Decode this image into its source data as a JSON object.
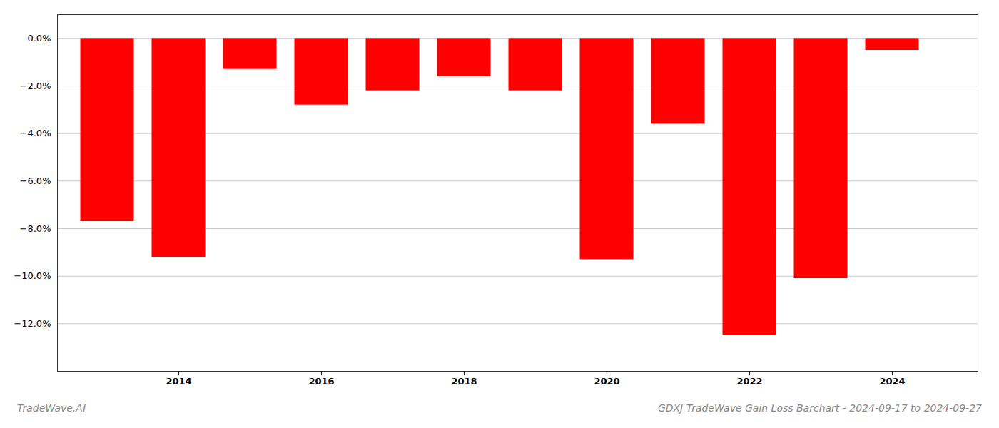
{
  "chart_data": {
    "type": "bar",
    "title": "GDXJ TradeWave Gain Loss Barchart - 2024-09-17 to 2024-09-27",
    "annotations": [
      "TradeWave.AI"
    ],
    "x": [
      2013,
      2014,
      2015,
      2016,
      2017,
      2018,
      2019,
      2020,
      2021,
      2022,
      2023,
      2024
    ],
    "values": [
      -0.077,
      -0.092,
      -0.013,
      -0.028,
      -0.022,
      -0.016,
      -0.022,
      -0.093,
      -0.036,
      -0.125,
      -0.101,
      -0.005
    ],
    "color": "#ff0000",
    "xlim": [
      2012.3,
      2025.2
    ],
    "xticks": [
      2014,
      2016,
      2018,
      2020,
      2022,
      2024
    ],
    "ylim": [
      -0.14,
      0.01
    ],
    "yticks": [
      {
        "value": 0.0,
        "label": "0.0%"
      },
      {
        "value": -0.02,
        "label": "−2.0%"
      },
      {
        "value": -0.04,
        "label": "−4.0%"
      },
      {
        "value": -0.06,
        "label": "−6.0%"
      },
      {
        "value": -0.08,
        "label": "−8.0%"
      },
      {
        "value": -0.1,
        "label": "−10.0%"
      },
      {
        "value": -0.12,
        "label": "−12.0%"
      }
    ],
    "grid": true
  }
}
